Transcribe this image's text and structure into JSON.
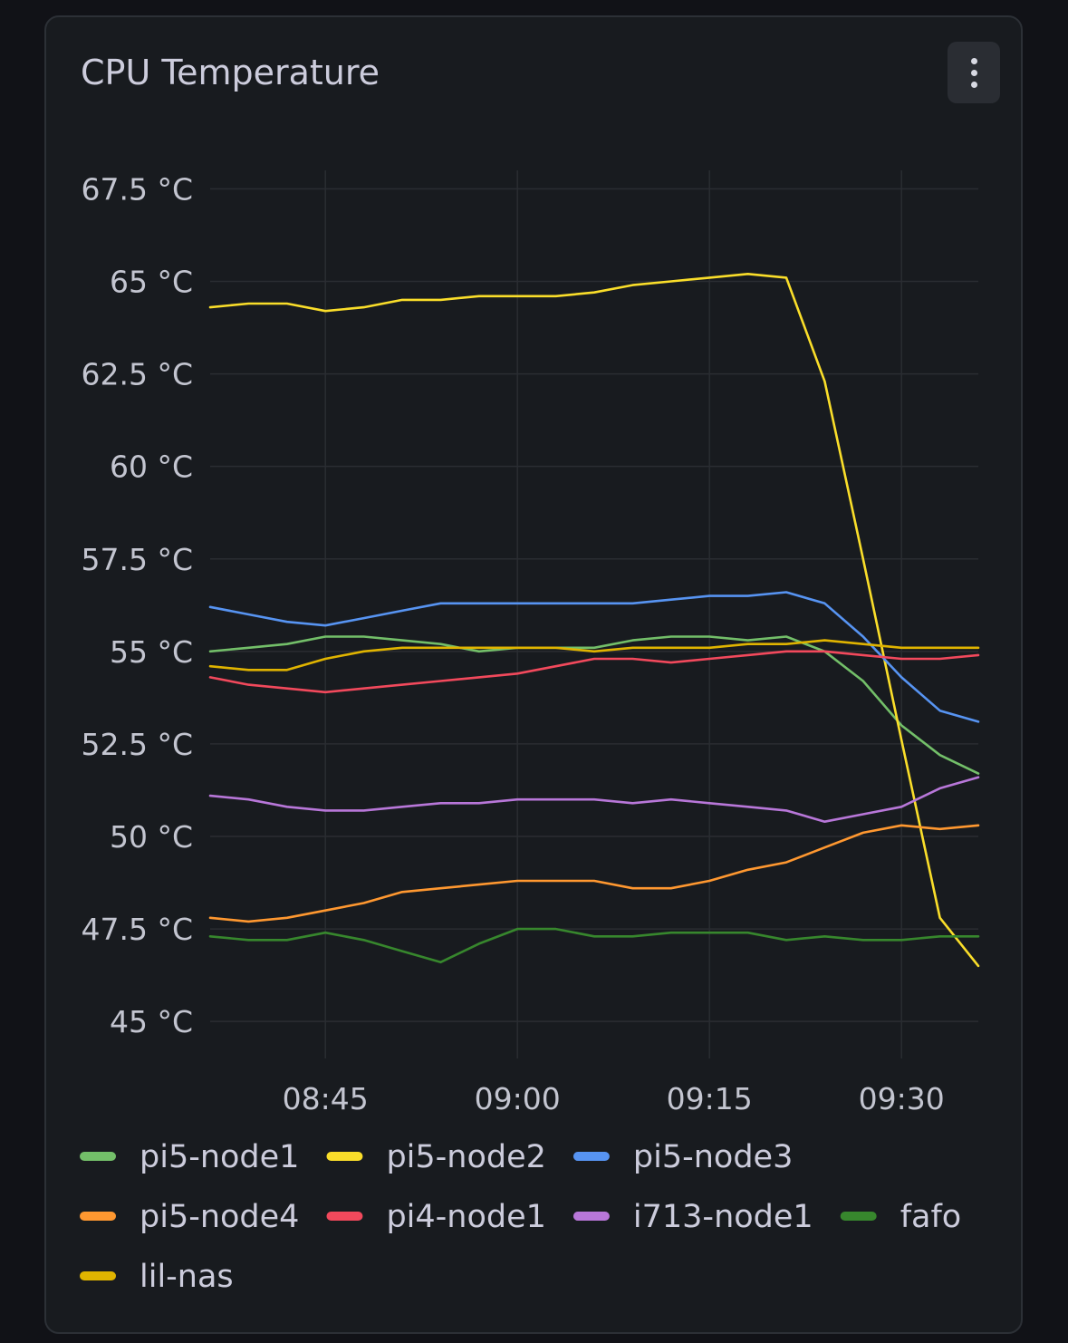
{
  "panel": {
    "title": "CPU Temperature",
    "menu_icon": "more-vertical-icon"
  },
  "chart_data": {
    "type": "line",
    "title": "CPU Temperature",
    "unit": "°C",
    "xlabel": "",
    "ylabel": "",
    "ylim": [
      44.0,
      68.0
    ],
    "xlim": [
      "08:36",
      "09:36"
    ],
    "y_ticks": [
      "45 °C",
      "47.5 °C",
      "50 °C",
      "52.5 °C",
      "55 °C",
      "57.5 °C",
      "60 °C",
      "62.5 °C",
      "65 °C",
      "67.5 °C"
    ],
    "y_tick_values": [
      45,
      47.5,
      50,
      52.5,
      55,
      57.5,
      60,
      62.5,
      65,
      67.5
    ],
    "x_ticks": [
      "08:45",
      "09:00",
      "09:15",
      "09:30"
    ],
    "grid": true,
    "legend_position": "bottom",
    "x": [
      "08:36",
      "08:39",
      "08:42",
      "08:45",
      "08:48",
      "08:51",
      "08:54",
      "08:57",
      "09:00",
      "09:03",
      "09:06",
      "09:09",
      "09:12",
      "09:15",
      "09:18",
      "09:21",
      "09:24",
      "09:27",
      "09:30",
      "09:33",
      "09:36"
    ],
    "series": [
      {
        "name": "pi5-node1",
        "color": "#73bf69",
        "values": [
          55.0,
          55.1,
          55.2,
          55.4,
          55.4,
          55.3,
          55.2,
          55.0,
          55.1,
          55.1,
          55.1,
          55.3,
          55.4,
          55.4,
          55.3,
          55.4,
          55.0,
          54.2,
          53.0,
          52.2,
          51.7
        ]
      },
      {
        "name": "pi5-node2",
        "color": "#fade2a",
        "values": [
          64.3,
          64.4,
          64.4,
          64.2,
          64.3,
          64.5,
          64.5,
          64.6,
          64.6,
          64.6,
          64.7,
          64.9,
          65.0,
          65.1,
          65.2,
          65.1,
          62.3,
          57.5,
          52.6,
          47.8,
          46.5
        ]
      },
      {
        "name": "pi5-node3",
        "color": "#5794f2",
        "values": [
          56.2,
          56.0,
          55.8,
          55.7,
          55.9,
          56.1,
          56.3,
          56.3,
          56.3,
          56.3,
          56.3,
          56.3,
          56.4,
          56.5,
          56.5,
          56.6,
          56.3,
          55.4,
          54.3,
          53.4,
          53.1
        ]
      },
      {
        "name": "pi5-node4",
        "color": "#ff9830",
        "values": [
          47.8,
          47.7,
          47.8,
          48.0,
          48.2,
          48.5,
          48.6,
          48.7,
          48.8,
          48.8,
          48.8,
          48.6,
          48.6,
          48.8,
          49.1,
          49.3,
          49.7,
          50.1,
          50.3,
          50.2,
          50.3
        ]
      },
      {
        "name": "pi4-node1",
        "color": "#f2495c",
        "values": [
          54.3,
          54.1,
          54.0,
          53.9,
          54.0,
          54.1,
          54.2,
          54.3,
          54.4,
          54.6,
          54.8,
          54.8,
          54.7,
          54.8,
          54.9,
          55.0,
          55.0,
          54.9,
          54.8,
          54.8,
          54.9
        ]
      },
      {
        "name": "i713-node1",
        "color": "#b877d9",
        "values": [
          51.1,
          51.0,
          50.8,
          50.7,
          50.7,
          50.8,
          50.9,
          50.9,
          51.0,
          51.0,
          51.0,
          50.9,
          51.0,
          50.9,
          50.8,
          50.7,
          50.4,
          50.6,
          50.8,
          51.3,
          51.6
        ]
      },
      {
        "name": "fafo",
        "color": "#37872d",
        "values": [
          47.3,
          47.2,
          47.2,
          47.4,
          47.2,
          46.9,
          46.6,
          47.1,
          47.5,
          47.5,
          47.3,
          47.3,
          47.4,
          47.4,
          47.4,
          47.2,
          47.3,
          47.2,
          47.2,
          47.3,
          47.3
        ]
      },
      {
        "name": "lil-nas",
        "color": "#e0b400",
        "values": [
          54.6,
          54.5,
          54.5,
          54.8,
          55.0,
          55.1,
          55.1,
          55.1,
          55.1,
          55.1,
          55.0,
          55.1,
          55.1,
          55.1,
          55.2,
          55.2,
          55.3,
          55.2,
          55.1,
          55.1,
          55.1
        ]
      }
    ]
  }
}
